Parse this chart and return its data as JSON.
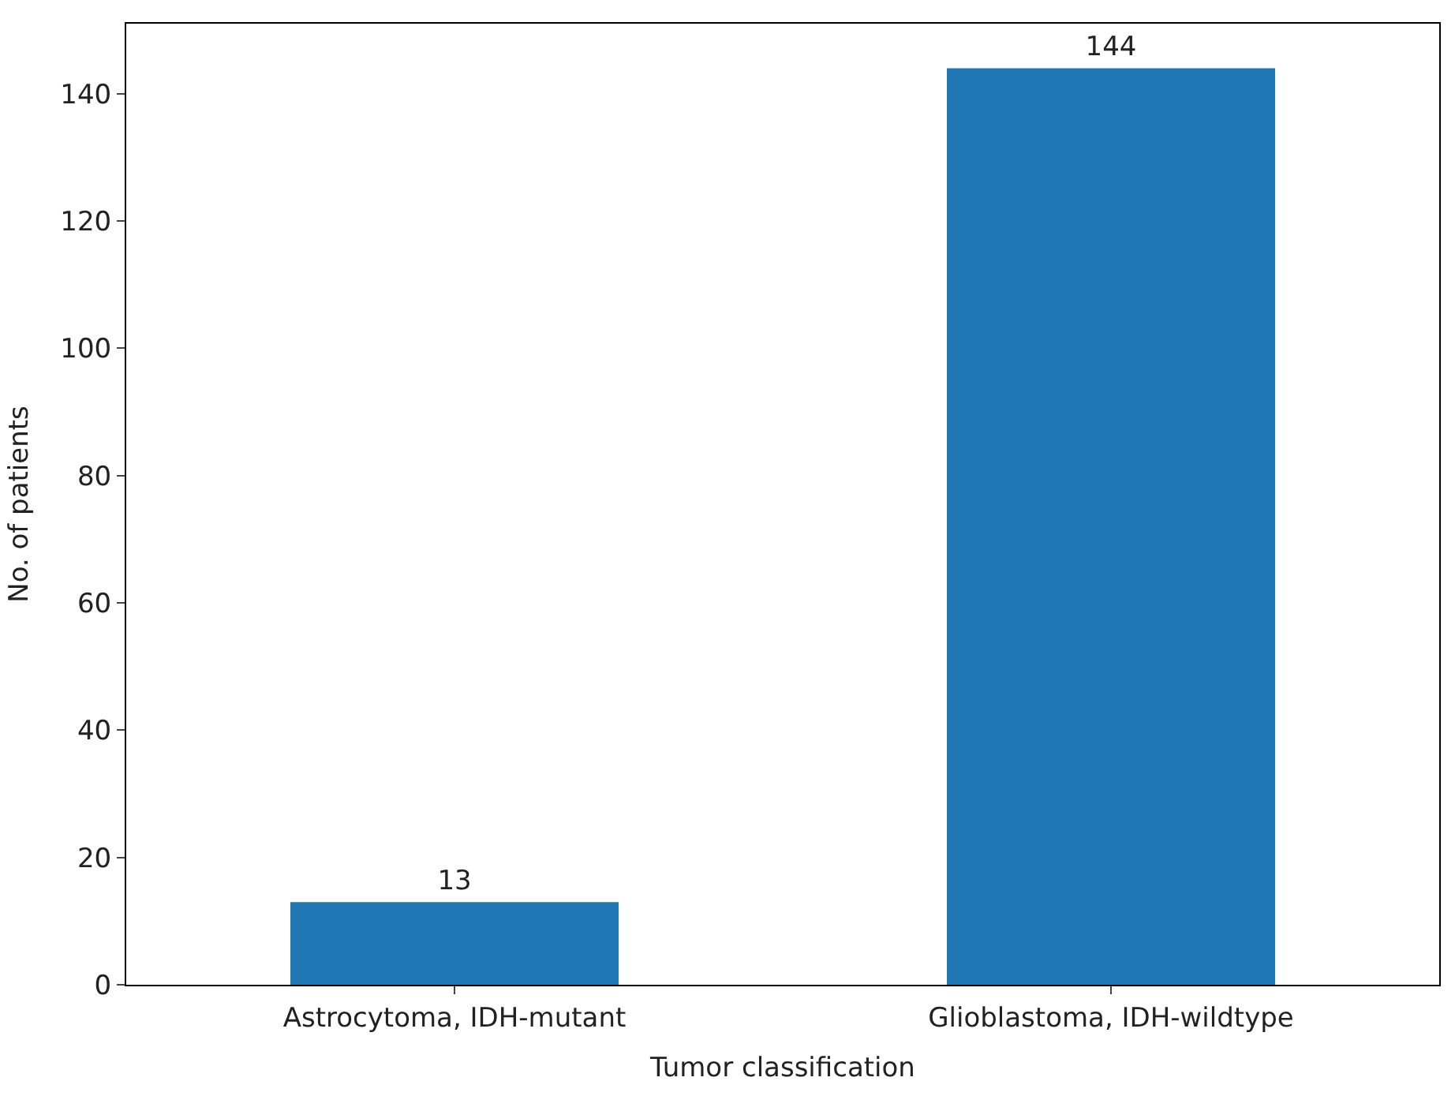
{
  "chart_data": {
    "type": "bar",
    "xlabel": "Tumor classification",
    "ylabel": "No. of patients",
    "categories": [
      "Astrocytoma, IDH-mutant",
      "Glioblastoma, IDH-wildtype"
    ],
    "values": [
      13,
      144
    ],
    "color": "#1f77b4",
    "data_labels": true,
    "ylim": [
      0,
      151
    ],
    "yticks": [
      0,
      20,
      40,
      60,
      80,
      100,
      120,
      140
    ]
  }
}
